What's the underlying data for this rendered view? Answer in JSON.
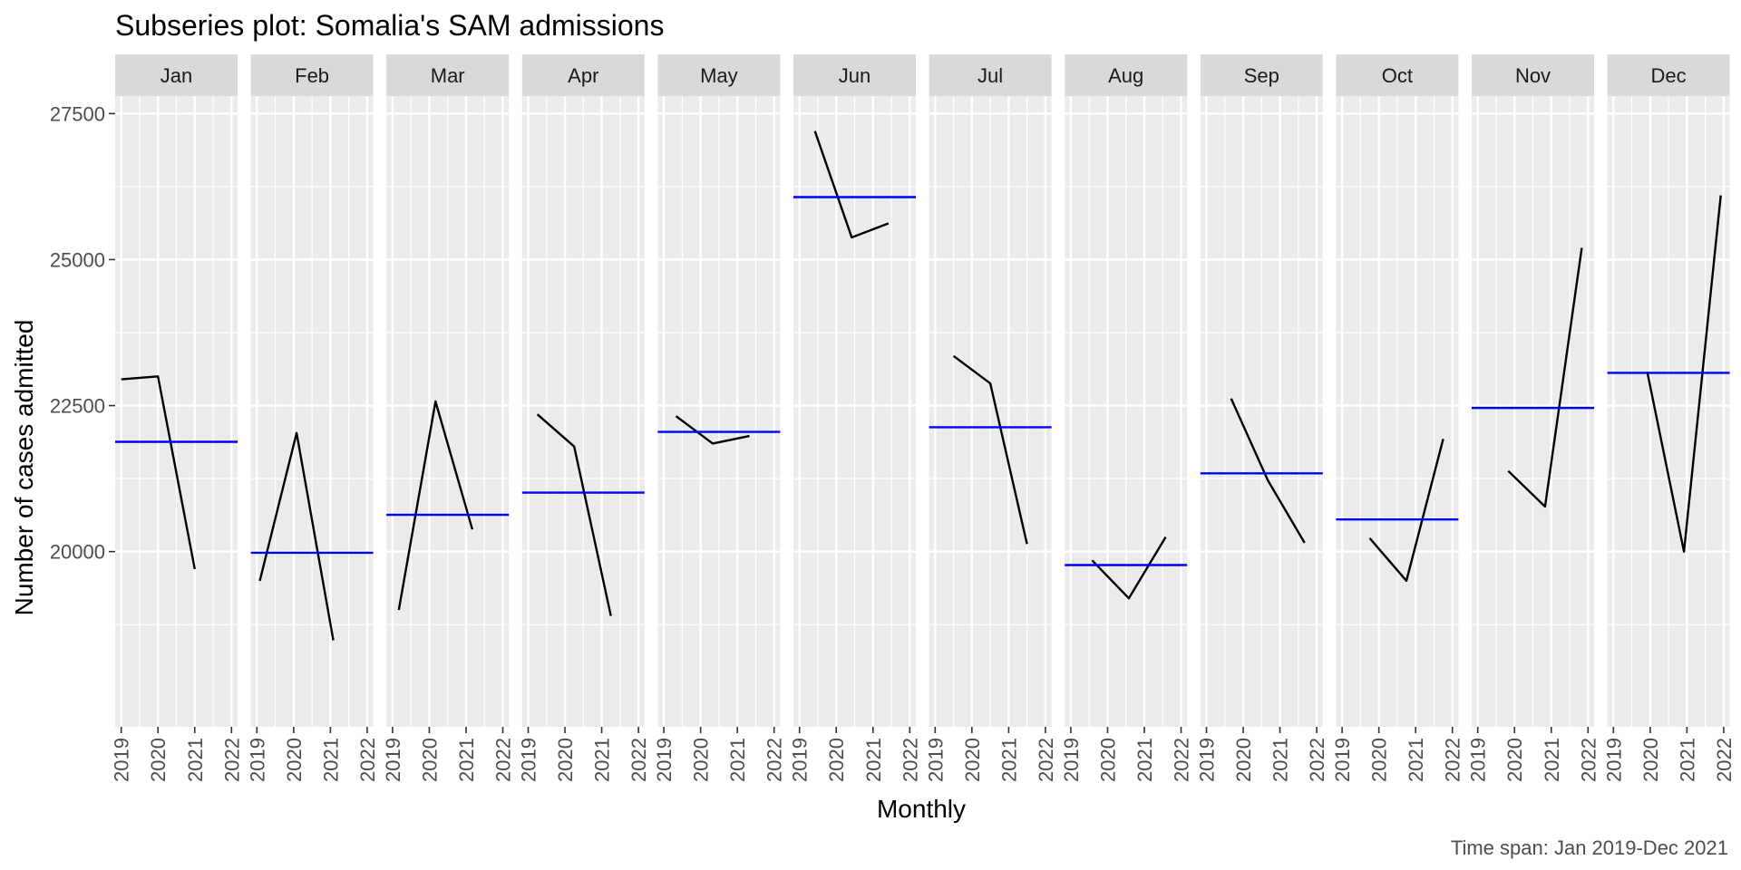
{
  "chart_data": {
    "type": "line",
    "subtype": "seasonal-subseries",
    "title": "Subseries plot: Somalia's SAM admissions",
    "xlabel": "Monthly",
    "ylabel": "Number of cases admitted",
    "caption": "Time span: Jan 2019-Dec 2021",
    "ylim": [
      17000,
      27800
    ],
    "y_ticks": [
      20000,
      22500,
      25000,
      27500
    ],
    "y_tick_labels": [
      "20000",
      "22500",
      "25000",
      "27500"
    ],
    "x_ticks": [
      2019,
      2020,
      2021,
      2022
    ],
    "x_tick_labels": [
      "2019",
      "2020",
      "2021",
      "2022"
    ],
    "grid": true,
    "colors": {
      "series": "#000000",
      "mean_line": "#0000ff",
      "panel_bg": "#ebebeb",
      "strip_bg": "#d9d9d9",
      "grid": "#ffffff"
    },
    "panels": [
      {
        "month": "Jan",
        "x": [
          2019.0,
          2020.0,
          2021.0
        ],
        "values": [
          22950,
          23000,
          19700
        ],
        "mean": 21880
      },
      {
        "month": "Feb",
        "x": [
          2019.08,
          2020.08,
          2021.08
        ],
        "values": [
          19500,
          22030,
          18480
        ],
        "mean": 19980
      },
      {
        "month": "Mar",
        "x": [
          2019.17,
          2020.17,
          2021.17
        ],
        "values": [
          19000,
          22570,
          20380
        ],
        "mean": 20630
      },
      {
        "month": "Apr",
        "x": [
          2019.25,
          2020.25,
          2021.25
        ],
        "values": [
          22350,
          21800,
          18900
        ],
        "mean": 21010
      },
      {
        "month": "May",
        "x": [
          2019.33,
          2020.33,
          2021.33
        ],
        "values": [
          22320,
          21850,
          21980
        ],
        "mean": 22050
      },
      {
        "month": "Jun",
        "x": [
          2019.42,
          2020.42,
          2021.42
        ],
        "values": [
          27200,
          25380,
          25620
        ],
        "mean": 26070
      },
      {
        "month": "Jul",
        "x": [
          2019.5,
          2020.5,
          2021.5
        ],
        "values": [
          23350,
          22880,
          20130
        ],
        "mean": 22130
      },
      {
        "month": "Aug",
        "x": [
          2019.58,
          2020.58,
          2021.58
        ],
        "values": [
          19850,
          19200,
          20250
        ],
        "mean": 19770
      },
      {
        "month": "Sep",
        "x": [
          2019.67,
          2020.67,
          2021.67
        ],
        "values": [
          22620,
          21220,
          20150
        ],
        "mean": 21340
      },
      {
        "month": "Oct",
        "x": [
          2019.75,
          2020.75,
          2021.75
        ],
        "values": [
          20230,
          19500,
          21930
        ],
        "mean": 20550
      },
      {
        "month": "Nov",
        "x": [
          2019.83,
          2020.83,
          2021.83
        ],
        "values": [
          21380,
          20770,
          25200
        ],
        "mean": 22460
      },
      {
        "month": "Dec",
        "x": [
          2019.92,
          2020.92,
          2021.92
        ],
        "values": [
          23080,
          20000,
          26100
        ],
        "mean": 23060
      }
    ]
  }
}
